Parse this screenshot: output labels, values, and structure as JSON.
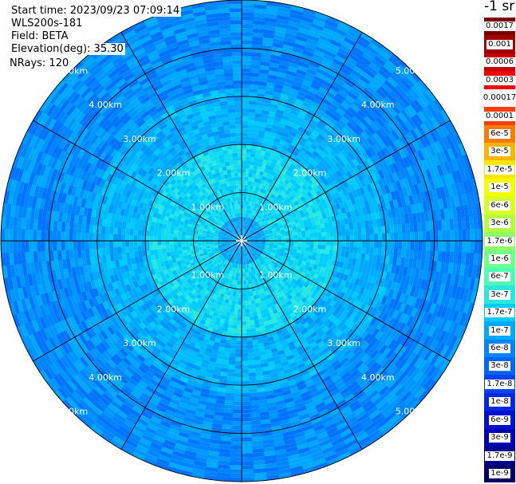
{
  "header": {
    "start_time": "Start time: 2023/09/23 07:09:14",
    "instrument": "WLS200s-181",
    "field": "Field: BETA",
    "elevation": "Elevation(deg): 35.30",
    "nrays": "NRays: 120"
  },
  "colorbar": {
    "unit_label": "-1 sr",
    "labels": [
      "0.0017",
      "0.001",
      "0.0006",
      "0.0003",
      "0.00017",
      "0.0001",
      "6e-5",
      "3e-5",
      "1.7e-5",
      "1e-5",
      "6e-6",
      "3e-6",
      "1.7e-6",
      "1e-6",
      "6e-7",
      "3e-7",
      "1.7e-7",
      "1e-7",
      "6e-8",
      "3e-8",
      "1.7e-8",
      "1e-8",
      "6e-9",
      "3e-9",
      "1.7e-9",
      "1e-9"
    ],
    "colors": [
      "#7a0000",
      "#a00000",
      "#c80000",
      "#f00000",
      "#ffffff",
      "#ff3d00",
      "#ff7a00",
      "#ffb400",
      "#ffe600",
      "#f4ff00",
      "#d8ff20",
      "#b4ff40",
      "#90ff66",
      "#6eff8c",
      "#4cffb4",
      "#2ae8e0",
      "#00ccff",
      "#00a8ff",
      "#0084ff",
      "#0064ff",
      "#0044f0",
      "#0028e0",
      "#0010d0",
      "#0000b4",
      "#000090",
      "#000066"
    ]
  },
  "chart_data": {
    "type": "heatmap",
    "subtype": "polar PPI scan (backscatter coefficient)",
    "field": "BETA",
    "units": "sr-1",
    "elevation_deg": 35.3,
    "n_rays": 120,
    "color_scale": "log",
    "range_rings_km": [
      1,
      2,
      3,
      4,
      5
    ],
    "ring_labels": [
      "1.00km",
      "2.00km",
      "3.00km",
      "4.00km",
      "5.00km"
    ],
    "max_range_km": 5.0,
    "spoke_azimuths_deg": [
      0,
      30,
      60,
      90,
      120,
      150,
      180,
      210,
      240,
      270,
      300,
      330
    ],
    "value_range": [
      1e-09,
      0.0017
    ],
    "dominant_values_by_range": [
      {
        "range_km": "0-2",
        "beta": "3e-8 to 1e-7 (cyan-blue)"
      },
      {
        "range_km": "2-5",
        "beta": "1e-8 to 3e-8 (blue)"
      }
    ]
  }
}
